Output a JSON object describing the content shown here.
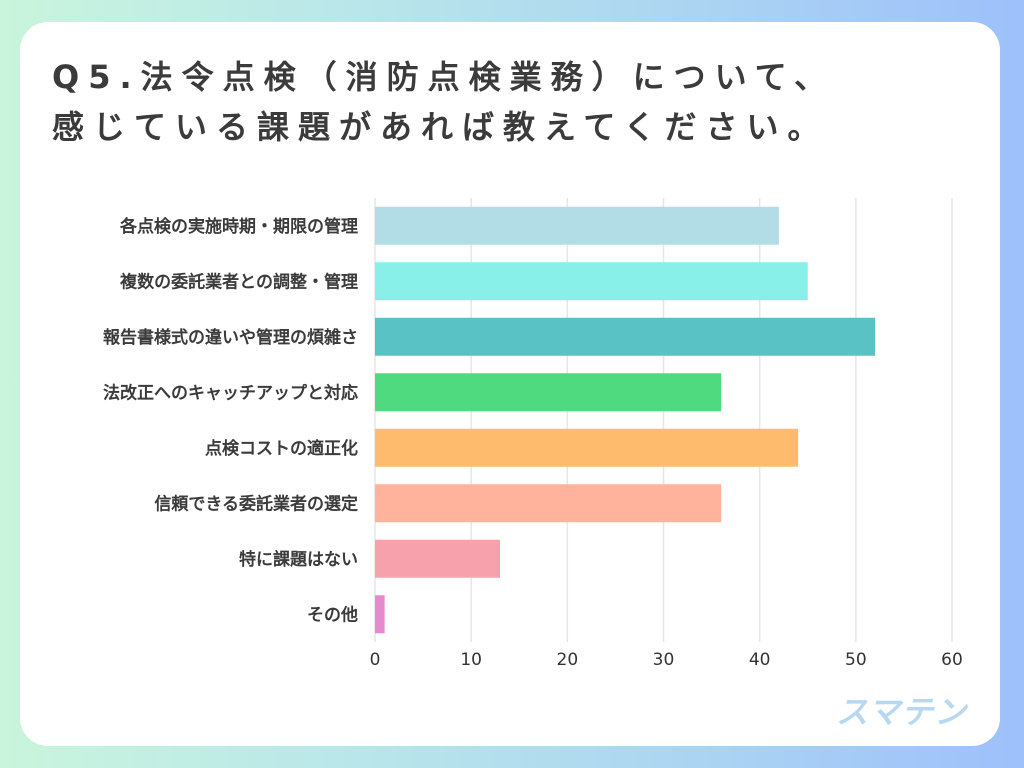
{
  "chart_data": {
    "type": "bar",
    "orientation": "horizontal",
    "title_lines": [
      "Q5.法令点検（消防点検業務）について、",
      "感じている課題があれば教えてください。"
    ],
    "categories": [
      "各点検の実施時期・期限の管理",
      "複数の委託業者との調整・管理",
      "報告書様式の違いや管理の煩雑さ",
      "法改正へのキャッチアップと対応",
      "点検コストの適正化",
      "信頼できる委託業者の選定",
      "特に課題はない",
      "その他"
    ],
    "values": [
      42,
      45,
      52,
      36,
      44,
      36,
      13,
      1
    ],
    "colors": [
      "#b2dde6",
      "#88efe9",
      "#59c2c5",
      "#4fda7f",
      "#ffbb6d",
      "#ffb39d",
      "#f7a1ac",
      "#e48acd"
    ],
    "xlim": [
      0,
      60
    ],
    "xticks": [
      0,
      10,
      20,
      30,
      40,
      50,
      60
    ],
    "grid": true
  },
  "logo": "スマテン"
}
